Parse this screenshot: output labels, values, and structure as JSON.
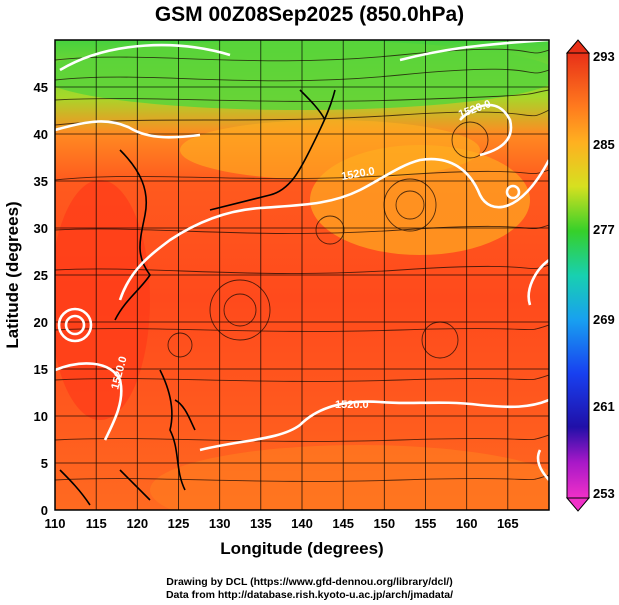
{
  "title": "GSM 00Z08Sep2025 (850.0hPa)",
  "credits": {
    "line1": "Drawing by DCL (https://www.gfd-dennou.org/library/dcl/)",
    "line2": "Data from http://database.rish.kyoto-u.ac.jp/arch/jmadata/"
  },
  "axes": {
    "xlabel": "Longitude (degrees)",
    "ylabel": "Latitude  (degrees)",
    "xlim": [
      110,
      170
    ],
    "ylim": [
      0,
      50
    ],
    "xticks": [
      110,
      115,
      120,
      125,
      130,
      135,
      140,
      145,
      150,
      155,
      160,
      165
    ],
    "yticks": [
      0,
      5,
      10,
      15,
      20,
      25,
      30,
      35,
      40,
      45
    ]
  },
  "colorbar": {
    "ticks": [
      "293",
      "285",
      "277",
      "269",
      "261",
      "253"
    ]
  },
  "contour_labels": [
    "1520.0",
    "1520.0",
    "1520.0",
    "1520.0"
  ],
  "colors": {
    "warm": "#ff4a1c",
    "mid": "#ffa020",
    "cool": "#48d84a",
    "contour": "#ffffff",
    "coast": "#000000"
  }
}
